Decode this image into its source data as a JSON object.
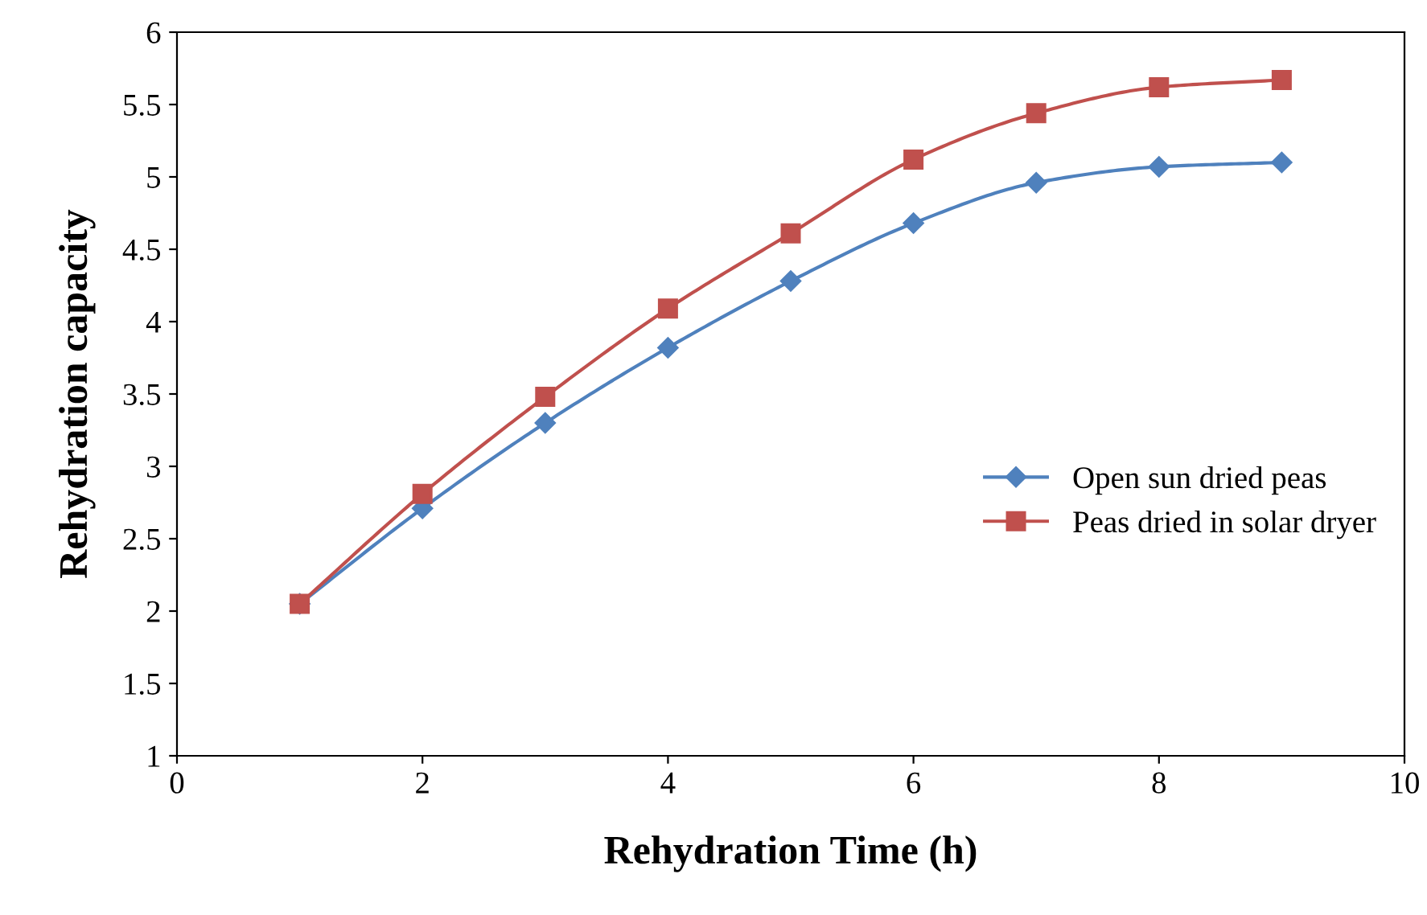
{
  "chart_data": {
    "type": "line",
    "xlabel": "Rehydration Time (h)",
    "ylabel": "Rehydration capacity",
    "x": [
      1,
      2,
      3,
      4,
      5,
      6,
      7,
      8,
      9
    ],
    "series": [
      {
        "name": "Open sun dried peas",
        "color": "#4f81bd",
        "marker": "diamond",
        "values": [
          2.05,
          2.71,
          3.3,
          3.82,
          4.28,
          4.68,
          4.96,
          5.07,
          5.1
        ]
      },
      {
        "name": "Peas dried in solar dryer",
        "color": "#c0504d",
        "marker": "square",
        "values": [
          2.05,
          2.81,
          3.48,
          4.09,
          4.61,
          5.12,
          5.44,
          5.62,
          5.67
        ]
      }
    ],
    "xlim": [
      0,
      10
    ],
    "xticks": [
      0,
      2,
      4,
      6,
      8,
      10
    ],
    "ylim": [
      1,
      6
    ],
    "yticks": [
      1,
      1.5,
      2,
      2.5,
      3,
      3.5,
      4,
      4.5,
      5,
      5.5,
      6
    ],
    "grid": false,
    "legend": "right",
    "line_style": "solid"
  }
}
